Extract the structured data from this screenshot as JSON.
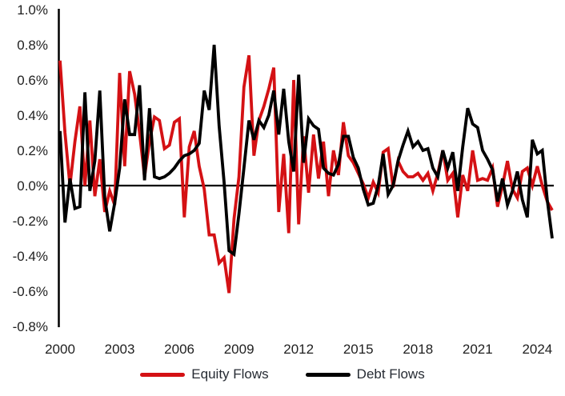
{
  "colors": {
    "equity": "#d41114",
    "debt": "#000000",
    "axis": "#000000",
    "tick_text": "#1f1f1f",
    "background": "#ffffff"
  },
  "legend": {
    "items": [
      {
        "label": "Equity Flows",
        "color": "#d41114"
      },
      {
        "label": "Debt Flows",
        "color": "#000000"
      }
    ]
  },
  "chart_data": {
    "type": "line",
    "title": "",
    "xlabel": "",
    "ylabel": "",
    "grid": false,
    "legend_position": "bottom",
    "ylim": [
      -0.8,
      1.0
    ],
    "y_tick_step": 0.2,
    "y_tick_labels": [
      "1.0%",
      "0.8%",
      "0.6%",
      "0.4%",
      "0.2%",
      "0.0%",
      "-0.2%",
      "-0.4%",
      "-0.6%",
      "-0.8%"
    ],
    "x_tick_labels": [
      "2000",
      "2003",
      "2006",
      "2009",
      "2012",
      "2015",
      "2018",
      "2021",
      "2024"
    ],
    "x_period": {
      "start": "2000Q1",
      "end": "2024Q4",
      "frequency": "quarterly",
      "points_per_series": 100
    },
    "units": "percent",
    "series": [
      {
        "name": "Equity Flows",
        "color": "#d41114",
        "values": [
          0.71,
          0.3,
          0.0,
          0.25,
          0.45,
          0.0,
          0.37,
          -0.06,
          0.15,
          -0.15,
          -0.03,
          -0.11,
          0.64,
          0.11,
          0.65,
          0.52,
          0.3,
          0.05,
          0.25,
          0.39,
          0.37,
          0.21,
          0.23,
          0.36,
          0.38,
          -0.18,
          0.22,
          0.31,
          0.11,
          -0.02,
          -0.28,
          -0.28,
          -0.44,
          -0.41,
          -0.61,
          -0.19,
          0.05,
          0.56,
          0.74,
          0.17,
          0.37,
          0.45,
          0.55,
          0.67,
          -0.15,
          0.18,
          -0.27,
          0.6,
          -0.22,
          0.28,
          -0.04,
          0.29,
          0.04,
          0.25,
          -0.06,
          0.2,
          0.06,
          0.36,
          0.17,
          0.13,
          0.07,
          0.01,
          -0.07,
          0.02,
          -0.04,
          0.19,
          0.21,
          -0.01,
          0.14,
          0.08,
          0.05,
          0.05,
          0.07,
          0.03,
          0.07,
          -0.03,
          0.07,
          0.2,
          0.03,
          0.07,
          -0.18,
          0.06,
          -0.03,
          0.2,
          0.03,
          0.04,
          0.03,
          0.1,
          -0.12,
          0.0,
          0.14,
          -0.02,
          -0.07,
          0.08,
          0.1,
          0.0,
          0.11,
          0.0,
          -0.09,
          -0.14
        ]
      },
      {
        "name": "Debt Flows",
        "color": "#000000",
        "values": [
          0.31,
          -0.21,
          0.04,
          -0.13,
          -0.12,
          0.53,
          -0.03,
          0.14,
          0.54,
          -0.07,
          -0.26,
          -0.1,
          0.1,
          0.49,
          0.29,
          0.29,
          0.57,
          0.03,
          0.44,
          0.05,
          0.04,
          0.05,
          0.07,
          0.1,
          0.14,
          0.17,
          0.18,
          0.2,
          0.24,
          0.54,
          0.43,
          0.8,
          0.34,
          0.02,
          -0.37,
          -0.39,
          -0.16,
          0.1,
          0.37,
          0.26,
          0.37,
          0.33,
          0.4,
          0.54,
          0.29,
          0.55,
          0.25,
          0.08,
          0.63,
          0.13,
          0.38,
          0.34,
          0.32,
          0.1,
          0.07,
          0.06,
          0.12,
          0.28,
          0.28,
          0.16,
          0.1,
          -0.02,
          -0.11,
          -0.1,
          0.0,
          0.18,
          -0.05,
          0.0,
          0.14,
          0.23,
          0.31,
          0.22,
          0.25,
          0.2,
          0.21,
          0.1,
          0.05,
          0.2,
          0.1,
          0.19,
          -0.03,
          0.22,
          0.44,
          0.35,
          0.33,
          0.2,
          0.15,
          0.09,
          -0.09,
          0.04,
          -0.11,
          -0.03,
          0.08,
          -0.08,
          -0.18,
          0.26,
          0.18,
          0.2,
          -0.08,
          -0.3
        ]
      }
    ]
  }
}
